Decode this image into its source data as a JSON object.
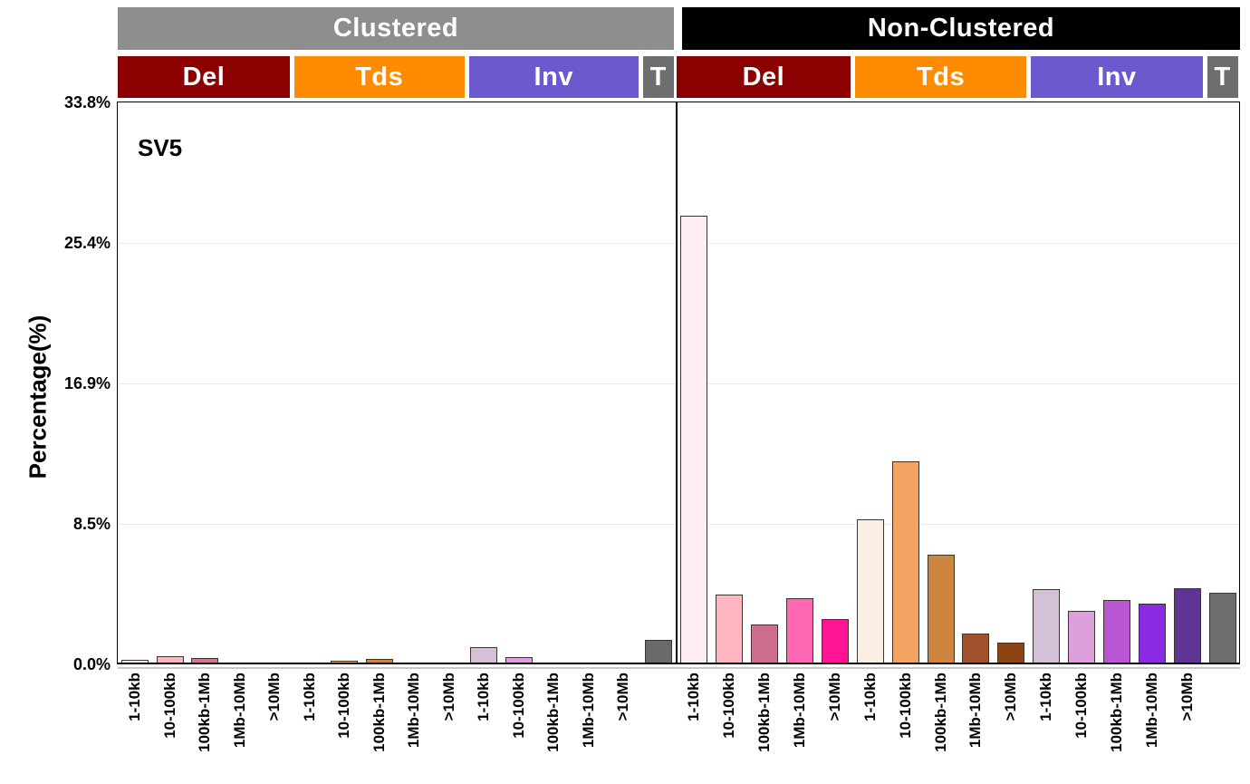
{
  "chart_data": {
    "type": "bar",
    "title": "SV5",
    "ylabel": "Percentage(%)",
    "ymax": 33.8,
    "yticks": [
      "33.8%",
      "25.4%",
      "16.9%",
      "8.5%",
      "0.0%"
    ],
    "size_bins": [
      "1-10kb",
      "10-100kb",
      "100kb-1Mb",
      "1Mb-10Mb",
      ">10Mb"
    ],
    "grid": "horizontal",
    "legend": "none",
    "sections": [
      {
        "label": "Clustered",
        "header_color": "#8E8E8E",
        "groups": [
          {
            "label": "Del",
            "header_color": "#8B0000",
            "bars": [
              {
                "bin": "1-10kb",
                "value": 0.25,
                "color": "#FFF0F5"
              },
              {
                "bin": "10-100kb",
                "value": 0.5,
                "color": "#FFB6C1"
              },
              {
                "bin": "100kb-1Mb",
                "value": 0.4,
                "color": "#DB7093"
              },
              {
                "bin": "1Mb-10Mb",
                "value": 0.12,
                "color": "#FF69B4"
              },
              {
                "bin": ">10Mb",
                "value": 0.0,
                "color": "#FF1493"
              }
            ]
          },
          {
            "label": "Tds",
            "header_color": "#FF8C00",
            "bars": [
              {
                "bin": "1-10kb",
                "value": 0.08,
                "color": "#FAF0E6"
              },
              {
                "bin": "10-100kb",
                "value": 0.2,
                "color": "#F4A460"
              },
              {
                "bin": "100kb-1Mb",
                "value": 0.3,
                "color": "#CD853F"
              },
              {
                "bin": "1Mb-10Mb",
                "value": 0.0,
                "color": "#A0522D"
              },
              {
                "bin": ">10Mb",
                "value": 0.0,
                "color": "#8B4513"
              }
            ]
          },
          {
            "label": "Inv",
            "header_color": "#6A5ACD",
            "bars": [
              {
                "bin": "1-10kb",
                "value": 1.05,
                "color": "#D8BFD8"
              },
              {
                "bin": "10-100kb",
                "value": 0.45,
                "color": "#DDA0DD"
              },
              {
                "bin": "100kb-1Mb",
                "value": 0.12,
                "color": "#BA55D3"
              },
              {
                "bin": "1Mb-10Mb",
                "value": 0.0,
                "color": "#8A2BE2"
              },
              {
                "bin": ">10Mb",
                "value": 0.0,
                "color": "#663399"
              }
            ]
          },
          {
            "label": "T",
            "header_color": "#6E6E6E",
            "bars": [
              {
                "bin": "",
                "value": 1.45,
                "color": "#696969"
              }
            ]
          }
        ]
      },
      {
        "label": "Non-Clustered",
        "header_color": "#000000",
        "groups": [
          {
            "label": "Del",
            "header_color": "#8B0000",
            "bars": [
              {
                "bin": "1-10kb",
                "value": 27.0,
                "color": "#FDEDF3"
              },
              {
                "bin": "10-100kb",
                "value": 4.2,
                "color": "#FFB6C1"
              },
              {
                "bin": "100kb-1Mb",
                "value": 2.4,
                "color": "#CC6E8C"
              },
              {
                "bin": "1Mb-10Mb",
                "value": 4.0,
                "color": "#FF69B4"
              },
              {
                "bin": ">10Mb",
                "value": 2.7,
                "color": "#FF1493"
              }
            ]
          },
          {
            "label": "Tds",
            "header_color": "#FF8C00",
            "bars": [
              {
                "bin": "1-10kb",
                "value": 8.7,
                "color": "#FAEFE4"
              },
              {
                "bin": "10-100kb",
                "value": 12.2,
                "color": "#F2A261"
              },
              {
                "bin": "100kb-1Mb",
                "value": 6.6,
                "color": "#CD853F"
              },
              {
                "bin": "1Mb-10Mb",
                "value": 1.85,
                "color": "#A0522D"
              },
              {
                "bin": ">10Mb",
                "value": 1.3,
                "color": "#8B4513"
              }
            ]
          },
          {
            "label": "Inv",
            "header_color": "#6A5ACD",
            "bars": [
              {
                "bin": "1-10kb",
                "value": 4.5,
                "color": "#D3C1D8"
              },
              {
                "bin": "10-100kb",
                "value": 3.2,
                "color": "#DDA0DD"
              },
              {
                "bin": "100kb-1Mb",
                "value": 3.85,
                "color": "#BA55D3"
              },
              {
                "bin": "1Mb-10Mb",
                "value": 3.65,
                "color": "#8A2BE2"
              },
              {
                "bin": ">10Mb",
                "value": 4.6,
                "color": "#5E3494"
              }
            ]
          },
          {
            "label": "T",
            "header_color": "#6E6E6E",
            "bars": [
              {
                "bin": "",
                "value": 4.3,
                "color": "#6E6E6E"
              }
            ]
          }
        ]
      }
    ]
  }
}
